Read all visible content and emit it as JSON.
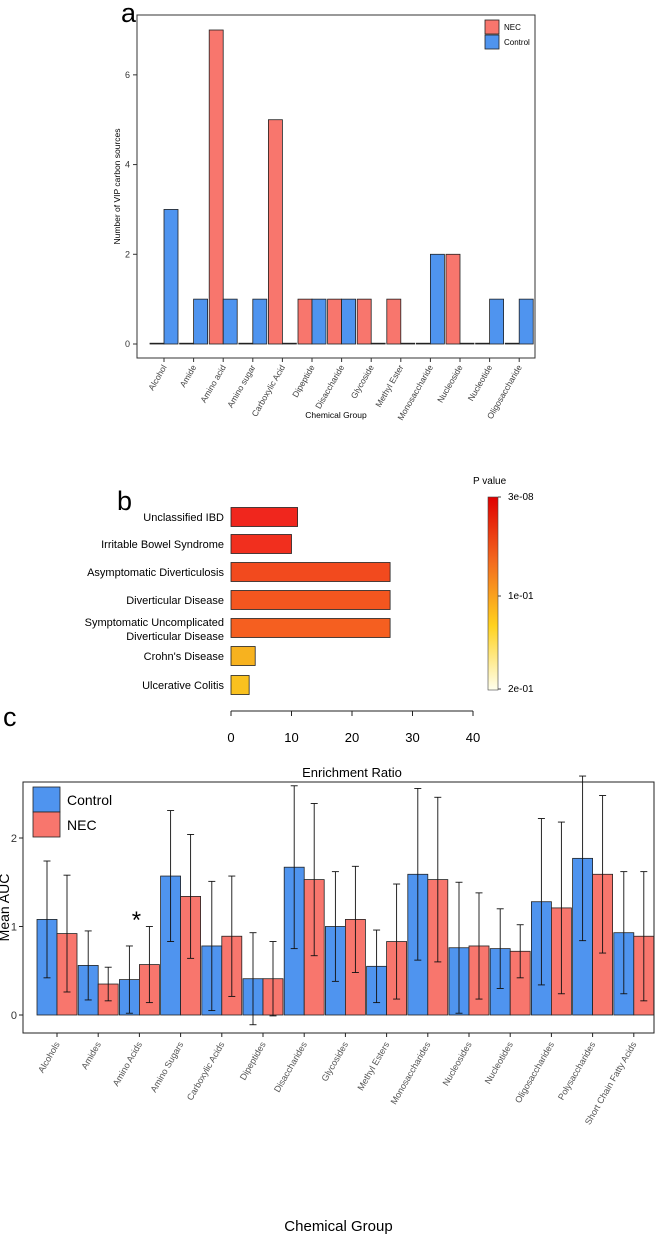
{
  "panel_labels": {
    "a": "a",
    "b": "b",
    "c": "c"
  },
  "chart_data": [
    {
      "panel": "a",
      "type": "bar",
      "title": "",
      "xlabel": "Chemical Group",
      "ylabel": "Number of VIP carbon sources",
      "ylim": [
        0,
        7.4
      ],
      "yticks": [
        0,
        2,
        4,
        6
      ],
      "categories": [
        "Alcohol",
        "Amide",
        "Amino acid",
        "Amino sugar",
        "Carboxylic Acid",
        "Dipeptide",
        "Disaccharide",
        "Glycoside",
        "Methyl Ester",
        "Monosaccharide",
        "Nucleoside",
        "Nucleotide",
        "Oligosaccharide"
      ],
      "series": [
        {
          "name": "NEC",
          "color": "#f8766d",
          "values": [
            0,
            0,
            7,
            0,
            5,
            1,
            1,
            1,
            1,
            0,
            2,
            0,
            0
          ]
        },
        {
          "name": "Control",
          "color": "#4f94ef",
          "values": [
            3,
            1,
            1,
            1,
            0,
            1,
            1,
            0,
            0,
            2,
            0,
            1,
            1
          ]
        }
      ],
      "legend": {
        "position": "top-right",
        "items": [
          "NEC",
          "Control"
        ]
      }
    },
    {
      "panel": "b",
      "type": "bar",
      "orientation": "horizontal",
      "xlabel": "Enrichment Ratio",
      "xlim": [
        0,
        40
      ],
      "xticks": [
        0,
        10,
        20,
        30,
        40
      ],
      "categories": [
        "Unclassified IBD",
        "Irritable Bowel Syndrome",
        "Asymptomatic Diverticulosis",
        "Diverticular Disease",
        "Symptomatic Uncomplicated Diverticular Disease",
        "Crohn's Disease",
        "Ulcerative Colitis"
      ],
      "category_lines": [
        [
          "Unclassified IBD"
        ],
        [
          "Irritable Bowel Syndrome"
        ],
        [
          "Asymptomatic Diverticulosis"
        ],
        [
          "Diverticular Disease"
        ],
        [
          "Symptomatic Uncomplicated",
          "Diverticular Disease"
        ],
        [
          "Crohn's Disease"
        ],
        [
          "Ulcerative Colitis"
        ]
      ],
      "values": [
        11,
        10,
        26.3,
        26.3,
        26.3,
        4,
        3
      ],
      "colors": [
        "#f0261d",
        "#f12f1e",
        "#f24a1e",
        "#f4561f",
        "#f55f20",
        "#f7b21f",
        "#f9c11f"
      ],
      "colorbar": {
        "title": "P value",
        "labels": [
          "3e-08",
          "1e-01",
          "2e-01"
        ],
        "colors": [
          "#e00000",
          "#f36a1f",
          "#ffd21f",
          "#ffffee"
        ]
      }
    },
    {
      "panel": "c",
      "type": "bar",
      "xlabel": "Chemical Group",
      "ylabel": "Mean AUC",
      "ylim": [
        -0.2,
        2.8
      ],
      "yticks": [
        0,
        1,
        2
      ],
      "categories": [
        "Alcohols",
        "Amides",
        "Amino Acids",
        "Amino Sugars",
        "Carboxylic Acids",
        "Dipeptides",
        "Disaccharides",
        "Glycosides",
        "Methyl Esters",
        "Monosaccharides",
        "Nucleosides",
        "Nucleotides",
        "Oligosaccharides",
        "Polysaccharides",
        "Short Chain Fatty Acids"
      ],
      "series": [
        {
          "name": "Control",
          "color": "#4f94ef",
          "values": [
            1.08,
            0.56,
            0.4,
            1.57,
            0.78,
            0.41,
            1.67,
            1.0,
            0.55,
            1.59,
            0.76,
            0.75,
            1.28,
            1.77,
            0.93
          ],
          "error": [
            0.66,
            0.39,
            0.38,
            0.74,
            0.73,
            0.52,
            0.92,
            0.62,
            0.41,
            0.97,
            0.74,
            0.45,
            0.94,
            0.93,
            0.69
          ]
        },
        {
          "name": "NEC",
          "color": "#f8766d",
          "values": [
            0.92,
            0.35,
            0.57,
            1.34,
            0.89,
            0.41,
            1.53,
            1.08,
            0.83,
            1.53,
            0.78,
            0.72,
            1.21,
            1.59,
            0.89
          ],
          "error": [
            0.66,
            0.19,
            0.43,
            0.7,
            0.68,
            0.42,
            0.86,
            0.6,
            0.65,
            0.93,
            0.6,
            0.3,
            0.97,
            0.89,
            0.73
          ]
        }
      ],
      "annotations": [
        {
          "category": "Amino Acids",
          "text": "*"
        }
      ],
      "legend": {
        "position": "top-left",
        "items": [
          "Control",
          "NEC"
        ]
      }
    }
  ]
}
